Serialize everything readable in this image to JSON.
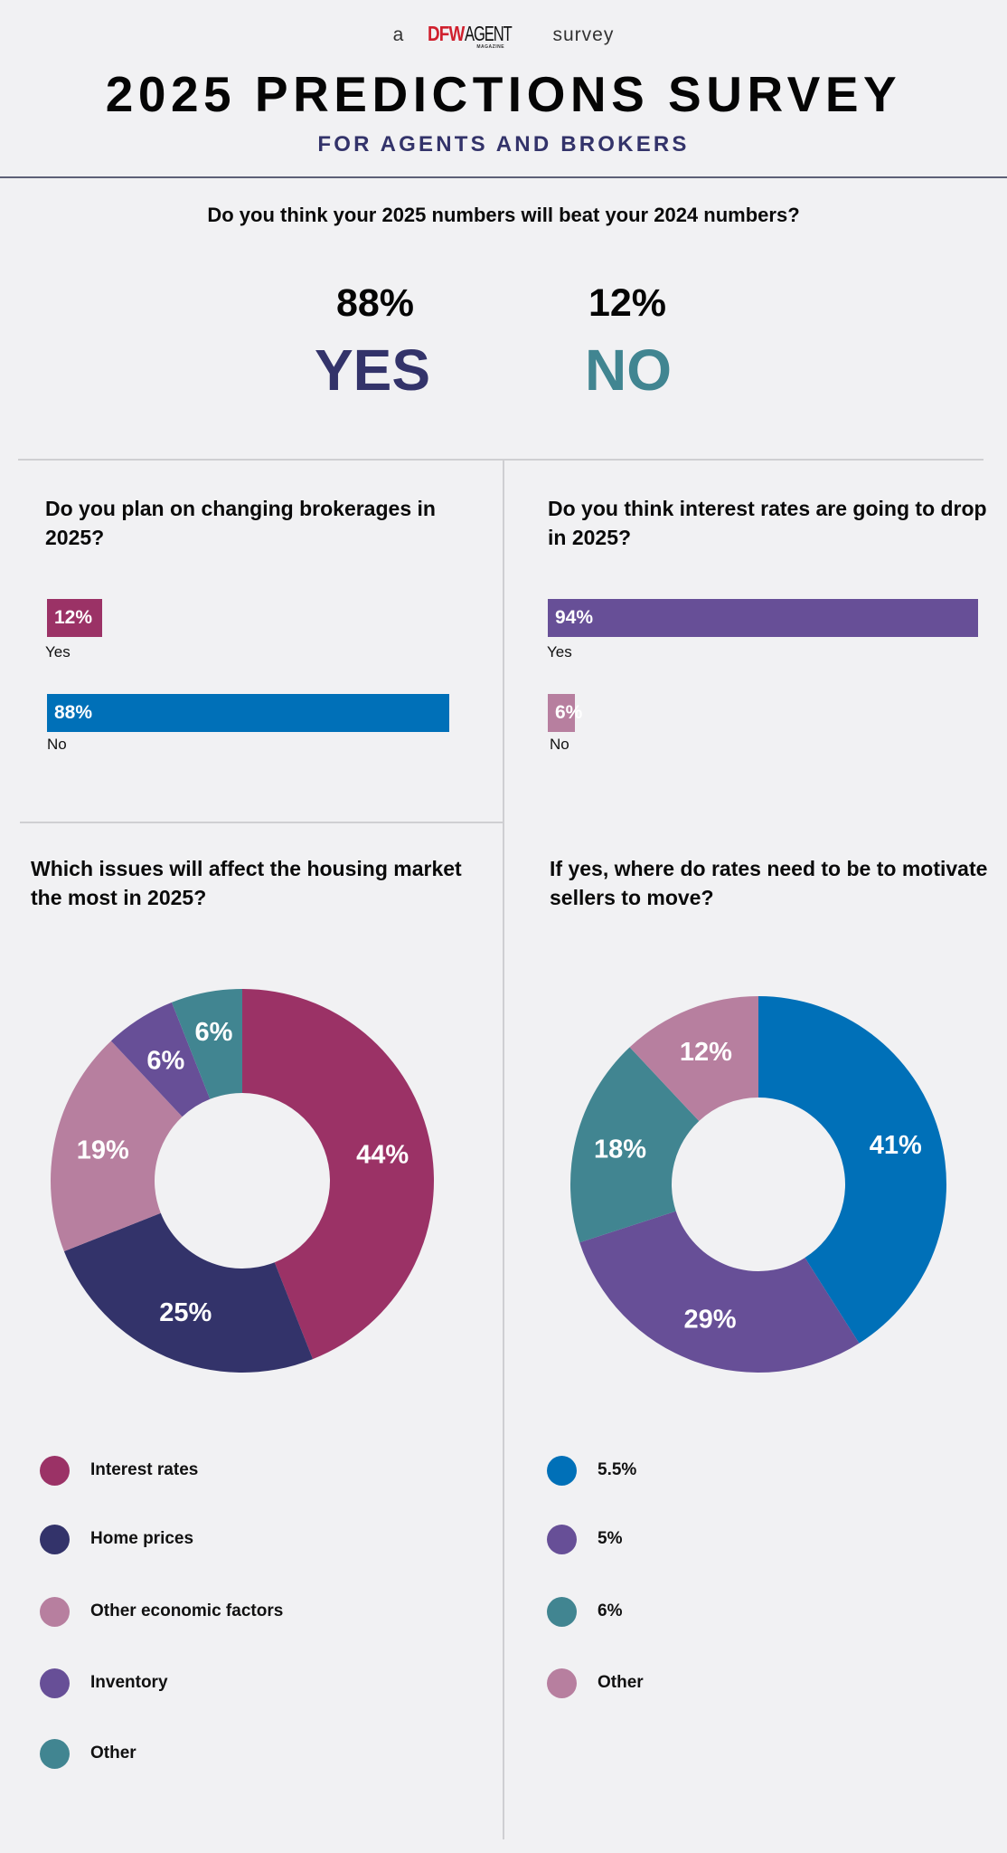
{
  "header": {
    "prefix": "a",
    "logo_primary": "DFW",
    "logo_secondary": "AGENT",
    "logo_tag": "MAGAZINE",
    "suffix": "survey",
    "title": "2025 PREDICTIONS SURVEY",
    "subtitle": "FOR AGENTS AND BROKERS"
  },
  "colors": {
    "background": "#f1f1f3",
    "navy": "#33336a",
    "teal": "#418591",
    "magenta": "#9b3266",
    "blue": "#0070b8",
    "purple": "#674f97",
    "mauve": "#b77f9f",
    "logo_red": "#d0202e"
  },
  "q1": {
    "question": "Do you think your 2025 numbers will beat your 2024 numbers?",
    "yes_pct": "88%",
    "yes_label": "YES",
    "no_pct": "12%",
    "no_label": "NO"
  },
  "chart_data": [
    {
      "type": "bar",
      "orientation": "horizontal",
      "title": "Do you plan on changing brokerages in 2025?",
      "categories": [
        "Yes",
        "No"
      ],
      "values": [
        12,
        88
      ],
      "value_labels": [
        "12%",
        "88%"
      ],
      "colors": [
        "#9b3266",
        "#0070b8"
      ],
      "xlim": [
        0,
        100
      ]
    },
    {
      "type": "bar",
      "orientation": "horizontal",
      "title": "Do you think interest rates are going to drop in 2025?",
      "categories": [
        "Yes",
        "No"
      ],
      "values": [
        94,
        6
      ],
      "value_labels": [
        "94%",
        "6%"
      ],
      "colors": [
        "#674f97",
        "#b77f9f"
      ],
      "xlim": [
        0,
        100
      ]
    },
    {
      "type": "pie",
      "subtype": "donut",
      "title": "Which issues will affect the housing market the most in 2025?",
      "categories": [
        "Interest rates",
        "Home prices",
        "Other economic factors",
        "Inventory",
        "Other"
      ],
      "values": [
        44,
        25,
        19,
        6,
        6
      ],
      "value_labels": [
        "44%",
        "25%",
        "19%",
        "6%",
        "6%"
      ],
      "colors": [
        "#9b3266",
        "#33336a",
        "#b77f9f",
        "#674f97",
        "#418591"
      ],
      "legend": "bottom"
    },
    {
      "type": "pie",
      "subtype": "donut",
      "title": "If yes, where do rates need to be to motivate sellers to move?",
      "categories": [
        "5.5%",
        "5%",
        "6%",
        "Other"
      ],
      "values": [
        41,
        29,
        18,
        12
      ],
      "value_labels": [
        "41%",
        "29%",
        "18%",
        "12%"
      ],
      "colors": [
        "#0070b8",
        "#674f97",
        "#418591",
        "#b77f9f"
      ],
      "legend": "bottom"
    }
  ]
}
